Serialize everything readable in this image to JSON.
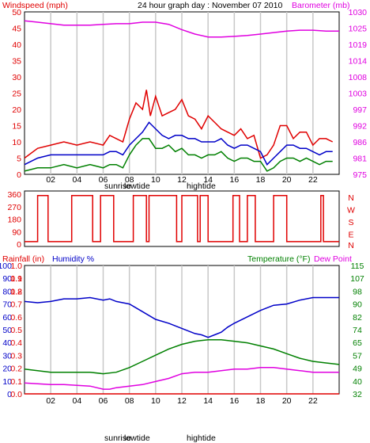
{
  "colors": {
    "wind": "#e00000",
    "avg_wind": "#0000c8",
    "gust_low": "#008000",
    "baro": "#e000e0",
    "humidity": "#0000c8",
    "temp": "#008000",
    "dew": "#e000e0",
    "rain": "#e00000",
    "grid": "#c8c8c8",
    "axis": "#000000"
  },
  "chart_data": [
    {
      "type": "line",
      "title": "24 hour graph day : November 07 2010",
      "ylabel": "Windspeed (mph)",
      "y2label": "Barometer (mb)",
      "x_ticks": [
        "02",
        "04",
        "06",
        "08",
        "10",
        "12",
        "14",
        "16",
        "18",
        "20",
        "22"
      ],
      "x_markers": [
        "sunrise",
        "lowtide",
        "hightide"
      ],
      "ylim": [
        0,
        50
      ],
      "y_ticks": [
        0,
        5,
        10,
        15,
        20,
        25,
        30,
        35,
        40,
        45,
        50
      ],
      "y2_ticks": [
        975,
        981,
        986,
        992,
        997,
        1003,
        1008,
        1014,
        1019,
        1025,
        1030
      ],
      "y2lim": [
        975,
        1030
      ],
      "series": [
        {
          "name": "Windspeed (mph)",
          "color_key": "wind",
          "axis": "left",
          "x": [
            0,
            1,
            2,
            3,
            4,
            5,
            6,
            6.5,
            7,
            7.5,
            8,
            8.5,
            9,
            9.3,
            9.6,
            10,
            10.5,
            11,
            11.5,
            12,
            12.5,
            13,
            13.5,
            14,
            14.5,
            15,
            15.5,
            16,
            16.5,
            17,
            17.5,
            18,
            18.5,
            19,
            19.5,
            20,
            20.5,
            21,
            21.5,
            22,
            22.5,
            23,
            23.5
          ],
          "values": [
            5,
            8,
            9,
            10,
            9,
            10,
            9,
            12,
            11,
            10,
            17,
            22,
            20,
            26,
            18,
            24,
            18,
            19,
            20,
            23,
            18,
            17,
            14,
            18,
            16,
            14,
            13,
            12,
            14,
            11,
            12,
            5,
            6,
            9,
            15,
            15,
            11,
            13,
            13,
            9,
            11,
            11,
            10
          ]
        },
        {
          "name": "",
          "color_key": "avg_wind",
          "axis": "left",
          "x": [
            0,
            1,
            2,
            3,
            4,
            5,
            6,
            6.5,
            7,
            7.5,
            8,
            8.5,
            9,
            9.5,
            10,
            10.5,
            11,
            11.5,
            12,
            12.5,
            13,
            13.5,
            14,
            14.5,
            15,
            15.5,
            16,
            16.5,
            17,
            17.5,
            18,
            18.5,
            19,
            19.5,
            20,
            20.5,
            21,
            21.5,
            22,
            22.5,
            23,
            23.5
          ],
          "values": [
            3,
            5,
            6,
            6,
            6,
            6,
            6,
            7,
            7,
            6,
            9,
            11,
            13,
            16,
            14,
            12,
            11,
            12,
            12,
            11,
            11,
            10,
            10,
            10,
            11,
            9,
            8,
            9,
            9,
            8,
            7,
            3,
            5,
            7,
            9,
            9,
            8,
            8,
            7,
            6,
            7,
            7
          ]
        },
        {
          "name": "",
          "color_key": "gust_low",
          "axis": "left",
          "x": [
            0,
            1,
            2,
            3,
            4,
            5,
            6,
            6.5,
            7,
            7.5,
            8,
            8.5,
            9,
            9.5,
            10,
            10.5,
            11,
            11.5,
            12,
            12.5,
            13,
            13.5,
            14,
            14.5,
            15,
            15.5,
            16,
            16.5,
            17,
            17.5,
            18,
            18.5,
            19,
            19.5,
            20,
            20.5,
            21,
            21.5,
            22,
            22.5,
            23,
            23.5
          ],
          "values": [
            1,
            2,
            2,
            3,
            2,
            3,
            2,
            3,
            3,
            2,
            6,
            9,
            11,
            11,
            8,
            8,
            9,
            7,
            8,
            6,
            6,
            5,
            6,
            6,
            7,
            5,
            4,
            5,
            5,
            4,
            4,
            1,
            2,
            4,
            5,
            5,
            4,
            5,
            4,
            3,
            4,
            4
          ]
        },
        {
          "name": "Barometer (mb)",
          "color_key": "baro",
          "axis": "right",
          "x": [
            0,
            1,
            2,
            3,
            4,
            5,
            6,
            7,
            8,
            9,
            10,
            11,
            12,
            13,
            14,
            15,
            16,
            17,
            18,
            19,
            20,
            21,
            22,
            23,
            24
          ],
          "values": [
            1027,
            1026.5,
            1026,
            1025.5,
            1025.5,
            1025.5,
            1025.8,
            1026,
            1026,
            1026.5,
            1026.5,
            1025.8,
            1024,
            1022.5,
            1021.5,
            1021.5,
            1021.7,
            1022,
            1022.5,
            1023,
            1023.5,
            1023.8,
            1023.8,
            1023.5,
            1023.5
          ]
        }
      ]
    },
    {
      "type": "line",
      "ylabel_right": [
        "N",
        "W",
        "S",
        "E",
        "N"
      ],
      "ylim": [
        0,
        360
      ],
      "y_ticks": [
        0,
        90,
        180,
        270,
        360
      ],
      "series": [
        {
          "name": "",
          "color_key": "wind",
          "segments": [
            [
              1.0,
              1.8
            ],
            [
              3.6,
              5.2
            ],
            [
              5.8,
              6.8
            ],
            [
              8.3,
              9.3
            ],
            [
              9.5,
              11.6
            ],
            [
              12.0,
              13.2
            ],
            [
              13.4,
              14.0
            ],
            [
              15.9,
              16.4
            ],
            [
              17.0,
              17.6
            ],
            [
              19.0,
              20.0
            ],
            [
              22.6,
              22.8
            ]
          ],
          "baseline": 18,
          "peak": 350
        }
      ]
    },
    {
      "type": "line",
      "ylabel": "Rainfall (in)",
      "ylabel2": "Humidity %",
      "y2label": "Temperature (°F)",
      "y2label_b": "Dew Point",
      "ylim": [
        0,
        100
      ],
      "y_ticks": [
        0,
        10,
        20,
        30,
        40,
        50,
        60,
        70,
        80,
        90,
        100
      ],
      "rain_ticks": [
        "0.0",
        "0.1",
        "0.2",
        "0.3",
        "0.4",
        "0.5",
        "0.6",
        "0.7",
        "0.8",
        "0.9",
        "1.0"
      ],
      "rain_ticks_extra": [
        "1.1",
        "1.2"
      ],
      "y2_ticks": [
        32,
        40,
        49,
        57,
        65,
        74,
        82,
        90,
        98,
        107,
        115
      ],
      "y2lim": [
        32,
        115
      ],
      "x_ticks": [
        "02",
        "04",
        "06",
        "08",
        "10",
        "12",
        "14",
        "16",
        "18",
        "20",
        "22"
      ],
      "x_markers": [
        "sunrise",
        "lowtide",
        "hightide"
      ],
      "series": [
        {
          "name": "Humidity %",
          "color_key": "humidity",
          "axis": "left",
          "x": [
            0,
            1,
            2,
            3,
            4,
            5,
            6,
            6.5,
            7,
            7.5,
            8,
            9,
            10,
            11,
            12,
            13,
            13.5,
            14,
            14.5,
            15,
            15.5,
            16,
            17,
            18,
            19,
            20,
            21,
            22,
            23,
            24
          ],
          "values": [
            72,
            71,
            72,
            74,
            74,
            75,
            73,
            74,
            72,
            71,
            70,
            64,
            58,
            55,
            51,
            47,
            46,
            44,
            46,
            48,
            52,
            55,
            60,
            65,
            69,
            70,
            73,
            75,
            75,
            75
          ]
        },
        {
          "name": "Temperature (°F)",
          "color_key": "temp",
          "axis": "right",
          "x": [
            0,
            1,
            2,
            3,
            4,
            5,
            6,
            7,
            8,
            9,
            10,
            11,
            12,
            13,
            14,
            15,
            16,
            17,
            18,
            19,
            20,
            21,
            22,
            23,
            24
          ],
          "values": [
            48,
            47,
            46,
            46,
            46,
            46,
            45,
            46,
            49,
            53,
            57,
            61,
            64,
            66,
            67,
            67,
            66,
            65,
            63,
            61,
            58,
            55,
            53,
            52,
            51
          ]
        },
        {
          "name": "Dew Point",
          "color_key": "dew",
          "axis": "right",
          "x": [
            0,
            1,
            2,
            3,
            4,
            5,
            6,
            6.5,
            7,
            8,
            9,
            10,
            11,
            12,
            13,
            14,
            15,
            16,
            17,
            18,
            19,
            20,
            21,
            22,
            23,
            24
          ],
          "values": [
            39,
            38.5,
            38,
            38,
            37.5,
            37,
            35,
            35,
            36,
            37,
            38,
            40,
            42,
            45,
            46,
            46,
            47,
            48,
            48,
            49,
            49,
            48,
            47,
            46,
            46,
            46
          ]
        },
        {
          "name": "Rainfall (in)",
          "color_key": "rain",
          "axis": "left",
          "x": [
            0,
            24
          ],
          "values": [
            0,
            0
          ]
        }
      ]
    }
  ]
}
